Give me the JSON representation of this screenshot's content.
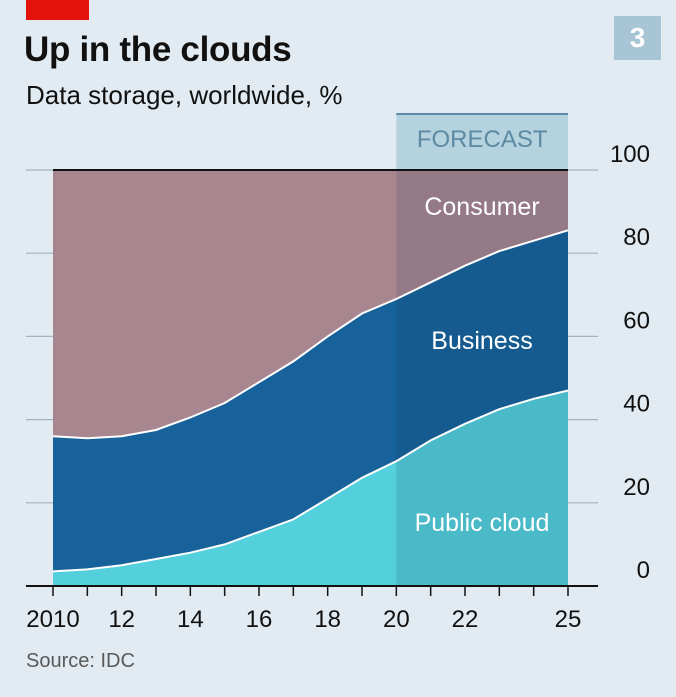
{
  "header": {
    "title": "Up in the clouds",
    "subtitle": "Data storage, worldwide, %",
    "badge": "3"
  },
  "footer": {
    "source": "Source: IDC"
  },
  "colors": {
    "background": "#e1ebf1",
    "consumer": "#a88690",
    "business": "#17629a",
    "public_cloud": "#54cfdc",
    "forecast_band": "#b5d2df",
    "accent_red": "#e3120b"
  },
  "chart_data": {
    "type": "area",
    "stacked": true,
    "title": "Up in the clouds",
    "subtitle": "Data storage, worldwide, %",
    "x": [
      2010,
      2011,
      2012,
      2013,
      2014,
      2015,
      2016,
      2017,
      2018,
      2019,
      2020,
      2021,
      2022,
      2023,
      2024,
      2025
    ],
    "x_tick_values": [
      2010,
      2012,
      2014,
      2016,
      2018,
      2020,
      2022,
      2025
    ],
    "x_tick_labels": [
      "2010",
      "12",
      "14",
      "16",
      "18",
      "20",
      "22",
      "25"
    ],
    "y_tick_values": [
      0,
      20,
      40,
      60,
      80,
      100
    ],
    "y_tick_labels": [
      "0",
      "20",
      "40",
      "60",
      "80",
      "100"
    ],
    "ylim": [
      0,
      100
    ],
    "y_axis_position": "right",
    "grid": true,
    "forecast": {
      "label": "FORECAST",
      "start": 2020,
      "end": 2025
    },
    "series": [
      {
        "name": "Public cloud",
        "values": [
          3.5,
          4,
          5,
          6.5,
          8,
          10,
          13,
          16,
          21,
          26,
          30,
          35,
          39,
          42.5,
          45,
          47
        ]
      },
      {
        "name": "Business",
        "values": [
          32.5,
          31.5,
          31,
          31,
          32.5,
          34,
          36,
          38,
          39,
          39.5,
          39,
          38,
          38,
          38,
          38,
          38.5
        ]
      },
      {
        "name": "Consumer",
        "values": [
          64,
          64.5,
          64,
          62.5,
          59.5,
          56,
          51,
          46,
          40,
          34.5,
          31,
          27,
          23,
          19.5,
          17,
          14.5
        ]
      }
    ]
  }
}
